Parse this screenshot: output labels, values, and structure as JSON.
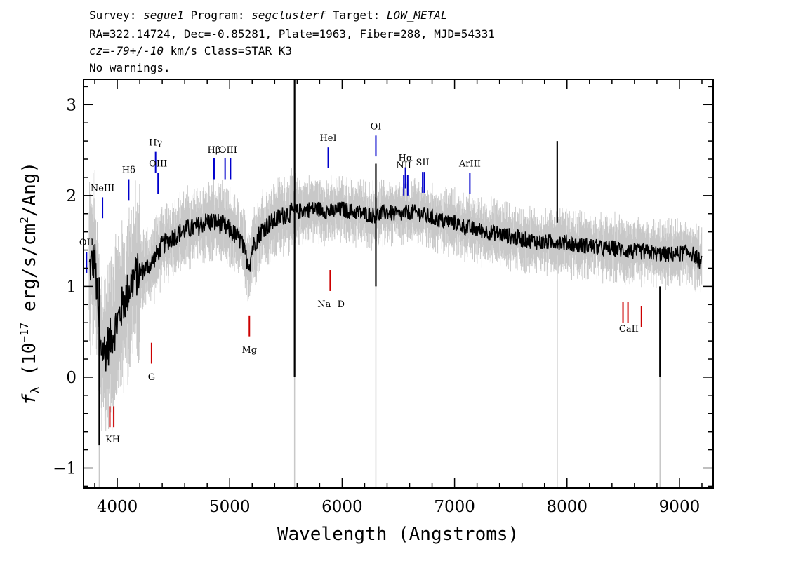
{
  "header": {
    "line1": [
      {
        "text": "Survey: ",
        "italic": false
      },
      {
        "text": "segue1",
        "italic": true
      },
      {
        "text": " Program: ",
        "italic": false
      },
      {
        "text": "segclusterf",
        "italic": true
      },
      {
        "text": " Target: ",
        "italic": false
      },
      {
        "text": "LOW_METAL",
        "italic": true
      }
    ],
    "line2": "RA=322.14724, Dec=-0.85281, Plate=1963, Fiber=288, MJD=54331",
    "line3": [
      {
        "text": "cz=-79+/-10",
        "italic": true
      },
      {
        "text": " km/s Class=STAR K3",
        "italic": false
      }
    ],
    "line4": "No warnings."
  },
  "chart_data": {
    "type": "line",
    "xlabel": "Wavelength (Angstroms)",
    "ylabel": "f_λ (10^-17 erg/s/cm^2/Ang)",
    "xlim": [
      3700,
      9300
    ],
    "ylim": [
      -1.22,
      3.28
    ],
    "xticks": [
      4000,
      5000,
      6000,
      7000,
      8000,
      9000
    ],
    "yticks": [
      -1,
      0,
      1,
      2,
      3
    ],
    "grid": false,
    "series": [
      {
        "role": "flux",
        "color": "#000000",
        "x": [
          3750,
          3800,
          3850,
          3900,
          3950,
          4000,
          4050,
          4100,
          4150,
          4200,
          4250,
          4300,
          4350,
          4400,
          4450,
          4500,
          4600,
          4700,
          4800,
          4900,
          5000,
          5100,
          5150,
          5180,
          5200,
          5250,
          5300,
          5400,
          5500,
          5600,
          5700,
          5800,
          5900,
          6000,
          6100,
          6200,
          6300,
          6400,
          6500,
          6600,
          6700,
          6800,
          6900,
          7000,
          7100,
          7200,
          7300,
          7400,
          7500,
          7600,
          7700,
          7800,
          7900,
          8000,
          8100,
          8200,
          8300,
          8400,
          8500,
          8600,
          8700,
          8800,
          8900,
          9000,
          9100,
          9200
        ],
        "y": [
          1.2,
          1.3,
          0.3,
          0.3,
          0.45,
          0.6,
          0.8,
          0.95,
          1.1,
          1.15,
          1.2,
          1.25,
          1.35,
          1.45,
          1.5,
          1.55,
          1.62,
          1.65,
          1.72,
          1.7,
          1.62,
          1.5,
          1.3,
          1.25,
          1.42,
          1.55,
          1.65,
          1.72,
          1.8,
          1.82,
          1.85,
          1.85,
          1.82,
          1.85,
          1.82,
          1.8,
          1.78,
          1.82,
          1.78,
          1.82,
          1.8,
          1.75,
          1.72,
          1.7,
          1.65,
          1.62,
          1.6,
          1.58,
          1.55,
          1.52,
          1.5,
          1.48,
          1.5,
          1.48,
          1.45,
          1.45,
          1.42,
          1.42,
          1.4,
          1.38,
          1.38,
          1.36,
          1.35,
          1.36,
          1.38,
          1.25
        ]
      }
    ],
    "spikes": [
      {
        "x": 3840,
        "y_min": -0.75,
        "y_max": 1.1
      },
      {
        "x": 5577,
        "y_min": 0.0,
        "y_max": 3.3
      },
      {
        "x": 6300,
        "y_min": 1.0,
        "y_max": 2.35
      },
      {
        "x": 7913,
        "y_min": 1.7,
        "y_max": 2.6
      },
      {
        "x": 8827,
        "y_min": 0.0,
        "y_max": 1.0
      }
    ],
    "error_color": "#c8c8c8",
    "emission_lines": [
      {
        "label": "NeIII",
        "x": 3869,
        "y_low": 1.75,
        "y_high": 1.98,
        "label_y": 2.05
      },
      {
        "label": "OII",
        "x": 3727,
        "y_low": 1.15,
        "y_high": 1.38,
        "label_y": 1.45
      },
      {
        "label": "Hδ",
        "x": 4102,
        "y_low": 1.95,
        "y_high": 2.18,
        "label_y": 2.25
      },
      {
        "label": "Hγ",
        "x": 4341,
        "y_low": 2.25,
        "y_high": 2.48,
        "label_y": 2.55
      },
      {
        "label": "OIII",
        "x": 4363,
        "y_low": 2.02,
        "y_high": 2.25,
        "label_y": 2.32
      },
      {
        "label": "Hβ",
        "x": 4861,
        "y_low": 2.18,
        "y_high": 2.41,
        "label_y": 2.47
      },
      {
        "label": "OIII",
        "x": 4959,
        "y_low": 2.18,
        "y_high": 2.41,
        "label_y": 2.47
      },
      {
        "label": "OIII",
        "x": 5007,
        "y_low": 2.18,
        "y_high": 2.41,
        "label_y": 2.47
      },
      {
        "label": "HeI",
        "x": 5876,
        "y_low": 2.3,
        "y_high": 2.53,
        "label_y": 2.6
      },
      {
        "label": "OI",
        "x": 6300,
        "y_low": 2.43,
        "y_high": 2.66,
        "label_y": 2.73
      },
      {
        "label": "NII",
        "x": 6548,
        "y_low": 2.0,
        "y_high": 2.23,
        "label_y": 2.3
      },
      {
        "label": "Hα",
        "x": 6563,
        "y_low": 2.08,
        "y_high": 2.31,
        "label_y": 2.38
      },
      {
        "label": "NII",
        "x": 6583,
        "y_low": 2.0,
        "y_high": 2.23,
        "label_y": 2.3
      },
      {
        "label": "SII",
        "x": 6716,
        "y_low": 2.03,
        "y_high": 2.26,
        "label_y": 2.33
      },
      {
        "label": "SII",
        "x": 6731,
        "y_low": 2.03,
        "y_high": 2.26,
        "label_y": 2.33
      },
      {
        "label": "ArIII",
        "x": 7136,
        "y_low": 2.02,
        "y_high": 2.25,
        "label_y": 2.32
      }
    ],
    "absorption_lines": [
      {
        "label": "K",
        "x": 3934,
        "y_low": -0.55,
        "y_high": -0.32,
        "label_y": -0.72
      },
      {
        "label": "H",
        "x": 3969,
        "y_low": -0.55,
        "y_high": -0.32,
        "label_y": -0.72
      },
      {
        "label": "G",
        "x": 4305,
        "y_low": 0.15,
        "y_high": 0.38,
        "label_y": -0.03
      },
      {
        "label": "Mg",
        "x": 5175,
        "y_low": 0.45,
        "y_high": 0.68,
        "label_y": 0.27
      },
      {
        "label": "Na",
        "x": 5894,
        "y_low": 0.95,
        "y_high": 1.18,
        "label_y": 0.77
      },
      {
        "label": "D",
        "x": 5894,
        "y_low": 0.95,
        "y_high": 1.18,
        "label_y": 0.77
      },
      {
        "label": "CaII",
        "x": 8498,
        "y_low": 0.6,
        "y_high": 0.83,
        "label_y": 0.5
      },
      {
        "label": "CaII",
        "x": 8542,
        "y_low": 0.6,
        "y_high": 0.83,
        "label_y": 0.5
      },
      {
        "label": "CaII",
        "x": 8662,
        "y_low": 0.55,
        "y_high": 0.78,
        "label_y": 0.5
      }
    ],
    "emission_color": "#0000cc",
    "absorption_color": "#cc0000"
  }
}
